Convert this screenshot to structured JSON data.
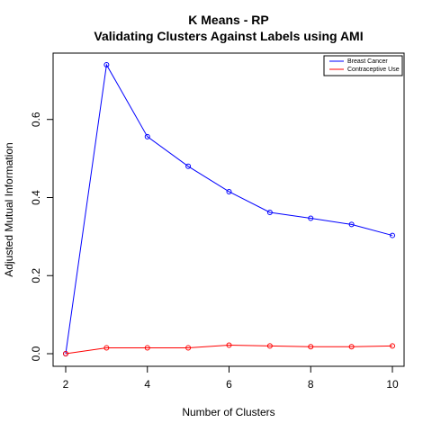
{
  "chart_data": {
    "type": "line",
    "title": "K Means - RP",
    "subtitle": "Validating Clusters Against Labels using AMI",
    "xlabel": "Number of Clusters",
    "ylabel": "Adjusted Mutual Information",
    "x": [
      2,
      3,
      4,
      5,
      6,
      7,
      8,
      9,
      10
    ],
    "xlim": [
      2,
      10
    ],
    "ylim": [
      0,
      0.74
    ],
    "xticks": [
      "2",
      "4",
      "6",
      "8",
      "10"
    ],
    "yticks": [
      "0.0",
      "0.2",
      "0.4",
      "0.6"
    ],
    "grid": false,
    "legend_position": "top-right",
    "series": [
      {
        "name": "Breast Cancer",
        "color": "#0000ff",
        "values": [
          0.0,
          0.74,
          0.556,
          0.48,
          0.415,
          0.362,
          0.347,
          0.331,
          0.303
        ]
      },
      {
        "name": "Contraceptive Use",
        "color": "#ff0000",
        "values": [
          0.0,
          0.015,
          0.015,
          0.015,
          0.022,
          0.02,
          0.018,
          0.018,
          0.02
        ]
      }
    ]
  }
}
